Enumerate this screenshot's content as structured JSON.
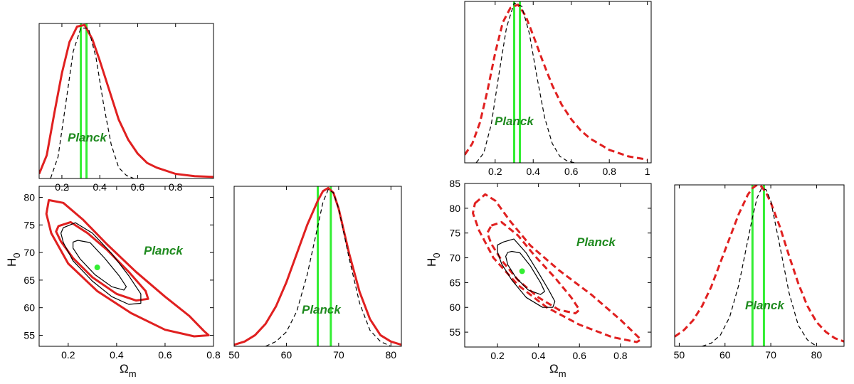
{
  "colors": {
    "red": "#e02020",
    "green": "#33ee33",
    "black": "#000000",
    "planck_text": "#1f8a1f"
  },
  "chart_data": [
    {
      "id": "left-omega-1d",
      "type": "line",
      "xlim": [
        0.08,
        1.0
      ],
      "ylim": [
        0,
        1.0
      ],
      "xticks": [
        {
          "v": 0.2,
          "label": "0.2"
        },
        {
          "v": 0.4,
          "label": "0.4"
        },
        {
          "v": 0.6,
          "label": "0.6"
        },
        {
          "v": 0.8,
          "label": "0.8"
        }
      ],
      "xlabel": "",
      "ylabel": "",
      "annotation": "Planck",
      "planck_band": [
        0.3,
        0.33
      ],
      "series": [
        {
          "name": "red-solid",
          "style": "solid",
          "x": [
            0.08,
            0.12,
            0.16,
            0.2,
            0.24,
            0.28,
            0.32,
            0.36,
            0.4,
            0.45,
            0.5,
            0.55,
            0.6,
            0.65,
            0.7,
            0.8,
            0.9,
            1.0
          ],
          "y": [
            0.03,
            0.15,
            0.42,
            0.68,
            0.88,
            0.98,
            0.99,
            0.9,
            0.76,
            0.57,
            0.38,
            0.25,
            0.16,
            0.1,
            0.07,
            0.03,
            0.015,
            0.01
          ]
        },
        {
          "name": "black-dashed",
          "style": "dashed",
          "x": [
            0.14,
            0.18,
            0.22,
            0.26,
            0.3,
            0.34,
            0.38,
            0.42,
            0.46,
            0.5,
            0.54,
            0.58
          ],
          "y": [
            0.0,
            0.14,
            0.48,
            0.82,
            0.97,
            0.97,
            0.78,
            0.48,
            0.22,
            0.07,
            0.02,
            0.0
          ]
        }
      ]
    },
    {
      "id": "left-contour",
      "type": "line",
      "xlim": [
        0.08,
        0.8
      ],
      "ylim": [
        53,
        82
      ],
      "xticks": [
        {
          "v": 0.2,
          "label": "0.2"
        },
        {
          "v": 0.4,
          "label": "0.4"
        },
        {
          "v": 0.6,
          "label": "0.6"
        },
        {
          "v": 0.8,
          "label": "0.8"
        }
      ],
      "yticks": [
        {
          "v": 55,
          "label": "55"
        },
        {
          "v": 60,
          "label": "60"
        },
        {
          "v": 65,
          "label": "65"
        },
        {
          "v": 70,
          "label": "70"
        },
        {
          "v": 75,
          "label": "75"
        },
        {
          "v": 80,
          "label": "80"
        }
      ],
      "xlabel": "Ω",
      "xlabel_sub": "m",
      "ylabel": "H",
      "ylabel_sub": "0",
      "annotation": "Planck",
      "point": [
        0.32,
        67.3
      ],
      "series": [
        {
          "name": "red-outer",
          "style": "solid",
          "closed": true,
          "x": [
            0.12,
            0.18,
            0.26,
            0.36,
            0.48,
            0.6,
            0.7,
            0.76,
            0.78,
            0.72,
            0.6,
            0.46,
            0.32,
            0.2,
            0.13,
            0.11
          ],
          "y": [
            79.5,
            79.0,
            76.0,
            71.5,
            66.5,
            62.0,
            58.5,
            55.8,
            55.0,
            54.8,
            56.0,
            59.0,
            63.0,
            68.0,
            73.5,
            77.0
          ]
        },
        {
          "name": "red-inner",
          "style": "solid",
          "closed": true,
          "x": [
            0.16,
            0.21,
            0.28,
            0.36,
            0.45,
            0.52,
            0.53,
            0.48,
            0.4,
            0.3,
            0.22,
            0.17,
            0.15
          ],
          "y": [
            74.8,
            75.5,
            73.5,
            70.5,
            66.5,
            63.0,
            61.6,
            61.3,
            62.5,
            65.5,
            69.0,
            72.0,
            73.8
          ]
        },
        {
          "name": "black-95",
          "style": "solid",
          "closed": true,
          "x": [
            0.18,
            0.23,
            0.3,
            0.38,
            0.45,
            0.5,
            0.5,
            0.45,
            0.38,
            0.3,
            0.22,
            0.18,
            0.17
          ],
          "y": [
            74.5,
            75.4,
            73.5,
            69.8,
            65.8,
            62.5,
            60.8,
            60.6,
            62.0,
            64.8,
            68.5,
            71.8,
            73.5
          ]
        },
        {
          "name": "black-68",
          "style": "solid",
          "closed": true,
          "x": [
            0.24,
            0.29,
            0.35,
            0.41,
            0.44,
            0.43,
            0.38,
            0.31,
            0.25,
            0.22,
            0.22
          ],
          "y": [
            72.2,
            71.8,
            69.0,
            65.8,
            63.8,
            63.2,
            63.8,
            66.0,
            68.8,
            70.8,
            71.9
          ]
        }
      ]
    },
    {
      "id": "left-h0-1d",
      "type": "line",
      "xlim": [
        50,
        82
      ],
      "ylim": [
        0,
        1.0
      ],
      "xticks": [
        {
          "v": 50,
          "label": "50"
        },
        {
          "v": 60,
          "label": "60"
        },
        {
          "v": 70,
          "label": "70"
        },
        {
          "v": 80,
          "label": "80"
        }
      ],
      "xlabel": "",
      "ylabel": "",
      "annotation": "Planck",
      "planck_band": [
        66,
        68.5
      ],
      "series": [
        {
          "name": "red-solid",
          "style": "solid",
          "x": [
            50,
            52,
            54,
            56,
            58,
            60,
            62,
            64,
            66,
            67,
            68,
            69,
            70,
            72,
            74,
            76,
            78,
            80,
            82
          ],
          "y": [
            0.01,
            0.03,
            0.07,
            0.14,
            0.25,
            0.4,
            0.58,
            0.76,
            0.91,
            0.97,
            0.99,
            0.96,
            0.86,
            0.58,
            0.34,
            0.17,
            0.07,
            0.03,
            0.01
          ]
        },
        {
          "name": "black-dashed",
          "style": "dashed",
          "x": [
            56,
            58,
            60,
            62,
            64,
            66,
            67,
            68,
            69,
            70,
            72,
            74,
            76,
            78,
            80
          ],
          "y": [
            0.0,
            0.03,
            0.09,
            0.22,
            0.45,
            0.75,
            0.9,
            0.98,
            0.96,
            0.86,
            0.55,
            0.27,
            0.1,
            0.03,
            0.0
          ]
        }
      ]
    },
    {
      "id": "right-omega-1d",
      "type": "line",
      "xlim": [
        0.04,
        1.02
      ],
      "ylim": [
        0,
        1.0
      ],
      "xticks": [
        {
          "v": 0.2,
          "label": "0.2"
        },
        {
          "v": 0.4,
          "label": "0.4"
        },
        {
          "v": 0.6,
          "label": "0.6"
        },
        {
          "v": 0.8,
          "label": "0.8"
        },
        {
          "v": 1.0,
          "label": "1"
        }
      ],
      "xlabel": "",
      "ylabel": "",
      "annotation": "Planck",
      "planck_band": [
        0.3,
        0.33
      ],
      "series": [
        {
          "name": "red-dashed",
          "style": "dashed",
          "x": [
            0.04,
            0.08,
            0.12,
            0.16,
            0.2,
            0.24,
            0.28,
            0.32,
            0.36,
            0.4,
            0.45,
            0.5,
            0.55,
            0.6,
            0.65,
            0.7,
            0.8,
            0.9,
            1.0
          ],
          "y": [
            0.05,
            0.12,
            0.25,
            0.45,
            0.68,
            0.87,
            0.96,
            0.98,
            0.91,
            0.79,
            0.63,
            0.48,
            0.36,
            0.27,
            0.2,
            0.15,
            0.08,
            0.04,
            0.02
          ]
        },
        {
          "name": "black-dashed",
          "style": "dashed",
          "x": [
            0.1,
            0.14,
            0.18,
            0.22,
            0.26,
            0.3,
            0.34,
            0.38,
            0.42,
            0.46,
            0.5,
            0.54,
            0.58,
            0.62
          ],
          "y": [
            0.0,
            0.06,
            0.24,
            0.55,
            0.84,
            0.99,
            0.97,
            0.8,
            0.53,
            0.28,
            0.12,
            0.04,
            0.01,
            0.0
          ]
        }
      ]
    },
    {
      "id": "right-contour",
      "type": "line",
      "xlim": [
        0.04,
        0.95
      ],
      "ylim": [
        52,
        85
      ],
      "xticks": [
        {
          "v": 0.2,
          "label": "0.2"
        },
        {
          "v": 0.4,
          "label": "0.4"
        },
        {
          "v": 0.6,
          "label": "0.6"
        },
        {
          "v": 0.8,
          "label": "0.8"
        }
      ],
      "yticks": [
        {
          "v": 55,
          "label": "55"
        },
        {
          "v": 60,
          "label": "60"
        },
        {
          "v": 65,
          "label": "65"
        },
        {
          "v": 70,
          "label": "70"
        },
        {
          "v": 75,
          "label": "75"
        },
        {
          "v": 80,
          "label": "80"
        },
        {
          "v": 85,
          "label": "85"
        }
      ],
      "xlabel": "Ω",
      "xlabel_sub": "m",
      "ylabel": "H",
      "ylabel_sub": "0",
      "annotation": "Planck",
      "point": [
        0.32,
        67.3
      ],
      "series": [
        {
          "name": "red-dashed-outer",
          "style": "dashed",
          "closed": true,
          "x": [
            0.09,
            0.14,
            0.19,
            0.26,
            0.36,
            0.5,
            0.66,
            0.8,
            0.9,
            0.88,
            0.76,
            0.6,
            0.44,
            0.3,
            0.18,
            0.11,
            0.08
          ],
          "y": [
            81.0,
            82.8,
            81.5,
            77.5,
            72.5,
            67.5,
            62.5,
            57.5,
            53.5,
            53.0,
            54.0,
            56.5,
            60.0,
            64.5,
            70.0,
            75.5,
            79.0
          ]
        },
        {
          "name": "red-dashed-inner",
          "style": "dashed",
          "closed": true,
          "x": [
            0.17,
            0.22,
            0.3,
            0.38,
            0.48,
            0.56,
            0.6,
            0.58,
            0.5,
            0.4,
            0.3,
            0.22,
            0.17,
            0.15
          ],
          "y": [
            76.5,
            77.2,
            74.5,
            70.5,
            66.0,
            62.0,
            59.5,
            58.8,
            59.5,
            62.0,
            65.5,
            69.5,
            72.8,
            75.0
          ]
        },
        {
          "name": "black-95",
          "style": "solid",
          "closed": true,
          "x": [
            0.23,
            0.28,
            0.34,
            0.4,
            0.45,
            0.48,
            0.47,
            0.42,
            0.34,
            0.27,
            0.22,
            0.2,
            0.2
          ],
          "y": [
            73.2,
            73.8,
            71.0,
            67.0,
            63.5,
            61.2,
            60.0,
            60.0,
            62.0,
            65.5,
            68.8,
            71.2,
            72.6
          ]
        },
        {
          "name": "black-68",
          "style": "solid",
          "closed": true,
          "x": [
            0.27,
            0.31,
            0.36,
            0.41,
            0.43,
            0.41,
            0.35,
            0.29,
            0.25,
            0.24,
            0.25
          ],
          "y": [
            71.3,
            71.0,
            68.4,
            65.0,
            63.2,
            62.6,
            63.5,
            66.0,
            68.6,
            70.3,
            71.1
          ]
        }
      ]
    },
    {
      "id": "right-h0-1d",
      "type": "line",
      "xlim": [
        49,
        86
      ],
      "ylim": [
        0,
        1.0
      ],
      "xticks": [
        {
          "v": 50,
          "label": "50"
        },
        {
          "v": 60,
          "label": "60"
        },
        {
          "v": 70,
          "label": "70"
        },
        {
          "v": 80,
          "label": "80"
        }
      ],
      "xlabel": "",
      "ylabel": "",
      "annotation": "Planck",
      "planck_band": [
        66,
        68.5
      ],
      "series": [
        {
          "name": "red-dashed",
          "style": "dashed",
          "x": [
            49,
            51,
            53,
            55,
            57,
            59,
            61,
            63,
            65,
            66,
            67,
            68,
            69,
            70,
            72,
            74,
            76,
            78,
            80,
            82,
            84,
            86
          ],
          "y": [
            0.06,
            0.1,
            0.16,
            0.25,
            0.37,
            0.52,
            0.67,
            0.82,
            0.94,
            0.98,
            1.0,
            0.99,
            0.95,
            0.89,
            0.74,
            0.56,
            0.39,
            0.25,
            0.15,
            0.09,
            0.05,
            0.03
          ]
        },
        {
          "name": "black-dashed",
          "style": "dashed",
          "x": [
            55,
            57,
            59,
            61,
            63,
            65,
            66,
            67,
            68,
            69,
            70,
            72,
            74,
            76,
            78,
            80
          ],
          "y": [
            0.0,
            0.02,
            0.07,
            0.18,
            0.38,
            0.66,
            0.8,
            0.92,
            0.98,
            0.97,
            0.9,
            0.62,
            0.33,
            0.13,
            0.04,
            0.0
          ]
        }
      ]
    }
  ]
}
